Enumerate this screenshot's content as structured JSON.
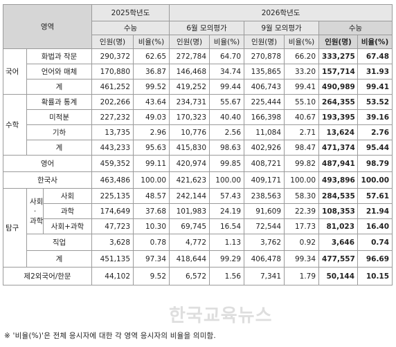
{
  "header": {
    "area": "영역",
    "y2025": "2025학년도",
    "y2026": "2026학년도",
    "suneung": "수능",
    "june": "6월 모의평가",
    "sept": "9월 모의평가",
    "suneung2026": "수능",
    "count": "인원(명)",
    "ratio": "비율(%)"
  },
  "rows": {
    "korean": {
      "group": "국어",
      "r1": {
        "label": "화법과 작문",
        "a": "290,372",
        "b": "62.65",
        "c": "272,784",
        "d": "64.70",
        "e": "270,878",
        "f": "66.20",
        "g": "333,275",
        "h": "67.48"
      },
      "r2": {
        "label": "언어와 매체",
        "a": "170,880",
        "b": "36.87",
        "c": "146,468",
        "d": "34.74",
        "e": "135,865",
        "f": "33.20",
        "g": "157,714",
        "h": "31.93"
      },
      "r3": {
        "label": "계",
        "a": "461,252",
        "b": "99.52",
        "c": "419,252",
        "d": "99.44",
        "e": "406,743",
        "f": "99.41",
        "g": "490,989",
        "h": "99.41"
      }
    },
    "math": {
      "group": "수학",
      "r1": {
        "label": "확률과 통계",
        "a": "202,266",
        "b": "43.64",
        "c": "234,731",
        "d": "55.67",
        "e": "225,444",
        "f": "55.10",
        "g": "264,355",
        "h": "53.52"
      },
      "r2": {
        "label": "미적분",
        "a": "227,232",
        "b": "49.03",
        "c": "170,323",
        "d": "40.40",
        "e": "166,398",
        "f": "40.67",
        "g": "193,395",
        "h": "39.16"
      },
      "r3": {
        "label": "기하",
        "a": "13,735",
        "b": "2.96",
        "c": "10,776",
        "d": "2.56",
        "e": "11,084",
        "f": "2.71",
        "g": "13,624",
        "h": "2.76"
      },
      "r4": {
        "label": "계",
        "a": "443,233",
        "b": "95.63",
        "c": "415,830",
        "d": "98.63",
        "e": "402,926",
        "f": "98.47",
        "g": "471,374",
        "h": "95.44"
      }
    },
    "english": {
      "label": "영어",
      "a": "459,352",
      "b": "99.11",
      "c": "420,974",
      "d": "99.85",
      "e": "408,721",
      "f": "99.82",
      "g": "487,941",
      "h": "98.79"
    },
    "history": {
      "label": "한국사",
      "a": "463,486",
      "b": "100.00",
      "c": "421,623",
      "d": "100.00",
      "e": "409,171",
      "f": "100.00",
      "g": "493,896",
      "h": "100.00"
    },
    "inquiry": {
      "group": "탐구",
      "subgroup_lines": [
        "사회",
        "·",
        "과학"
      ],
      "r1": {
        "label": "사회",
        "a": "225,135",
        "b": "48.57",
        "c": "242,144",
        "d": "57.43",
        "e": "238,563",
        "f": "58.30",
        "g": "284,535",
        "h": "57.61"
      },
      "r2": {
        "label": "과학",
        "a": "174,649",
        "b": "37.68",
        "c": "101,983",
        "d": "24.19",
        "e": "91,609",
        "f": "22.39",
        "g": "108,353",
        "h": "21.94"
      },
      "r3": {
        "label": "사회+과학",
        "a": "47,723",
        "b": "10.30",
        "c": "69,745",
        "d": "16.54",
        "e": "72,544",
        "f": "17.73",
        "g": "81,023",
        "h": "16.40"
      },
      "r4": {
        "label": "직업",
        "a": "3,628",
        "b": "0.78",
        "c": "4,772",
        "d": "1.13",
        "e": "3,762",
        "f": "0.92",
        "g": "3,646",
        "h": "0.74"
      },
      "r5": {
        "label": "계",
        "a": "451,135",
        "b": "97.34",
        "c": "418,644",
        "d": "99.29",
        "e": "406,478",
        "f": "99.34",
        "g": "477,557",
        "h": "96.69"
      }
    },
    "foreign": {
      "label": "제2외국어/한문",
      "a": "44,102",
      "b": "9.52",
      "c": "6,572",
      "d": "1.56",
      "e": "7,341",
      "f": "1.79",
      "g": "50,144",
      "h": "10.15"
    }
  },
  "footnote": "※ '비율(%)'은 전체 응시자에 대한 각 영역 응시자의 비율을 의미함.",
  "watermark": "한국교육뉴스"
}
